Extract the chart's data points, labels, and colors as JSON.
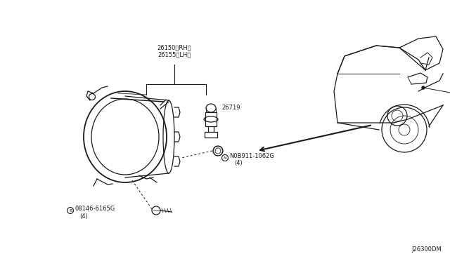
{
  "background_color": "#ffffff",
  "line_color": "#1a1a1a",
  "text_color": "#1a1a1a",
  "diagram_id": "J26300DM",
  "label_26150": "26150〈RH〉",
  "label_26155": "26155〈LH〉",
  "label_26719": "26719",
  "label_nut": "N0B911-1062G",
  "label_nut_qty": "(4)",
  "label_bolt": "08146-6165G",
  "label_bolt_qty": "(4)"
}
